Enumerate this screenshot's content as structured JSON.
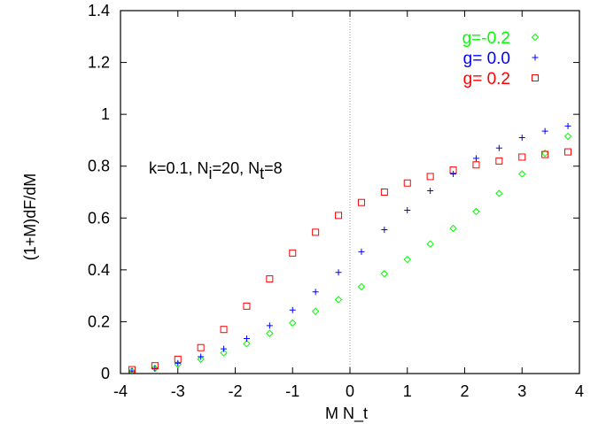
{
  "chart_data": {
    "type": "scatter",
    "title": "",
    "xlabel": "M N_t",
    "ylabel": "(1+M)dF/dM",
    "xlim": [
      -4,
      4
    ],
    "ylim": [
      0,
      1.4
    ],
    "x_ticks": [
      "-4",
      "-3",
      "-2",
      "-1",
      "0",
      "1",
      "2",
      "3",
      "4"
    ],
    "y_ticks": [
      "0",
      "0.2",
      "0.4",
      "0.6",
      "0.8",
      "1",
      "1.2",
      "1.4"
    ],
    "grid": false,
    "reference_line_x": 0,
    "legend_position": "top-right",
    "annotation": {
      "main": "k=0.1, N",
      "sub1": "i",
      "mid": "=20, N",
      "sub2": "t",
      "end": "=8"
    },
    "x": [
      -3.8,
      -3.4,
      -3.0,
      -2.6,
      -2.2,
      -1.8,
      -1.4,
      -1.0,
      -0.6,
      -0.2,
      0.2,
      0.6,
      1.0,
      1.4,
      1.8,
      2.2,
      2.6,
      3.0,
      3.4,
      3.8
    ],
    "series": [
      {
        "name": "g=-0.2",
        "color": "#00ff00",
        "marker": "diamond",
        "values": [
          0.01,
          0.02,
          0.035,
          0.055,
          0.08,
          0.115,
          0.155,
          0.195,
          0.24,
          0.285,
          0.335,
          0.385,
          0.44,
          0.5,
          0.56,
          0.625,
          0.695,
          0.77,
          0.85,
          0.915
        ]
      },
      {
        "name": "g= 0.0",
        "color": "#0000ff",
        "marker": "plus",
        "values": [
          0.01,
          0.02,
          0.04,
          0.065,
          0.095,
          0.135,
          0.185,
          0.245,
          0.315,
          0.39,
          0.47,
          0.555,
          0.63,
          0.705,
          0.77,
          0.83,
          0.87,
          0.91,
          0.935,
          0.955
        ]
      },
      {
        "name": "g= 0.2",
        "color": "#ff0000",
        "marker": "square",
        "values": [
          0.015,
          0.03,
          0.055,
          0.1,
          0.17,
          0.26,
          0.365,
          0.465,
          0.545,
          0.61,
          0.66,
          0.7,
          0.735,
          0.76,
          0.785,
          0.805,
          0.82,
          0.835,
          0.845,
          0.855
        ]
      }
    ]
  }
}
